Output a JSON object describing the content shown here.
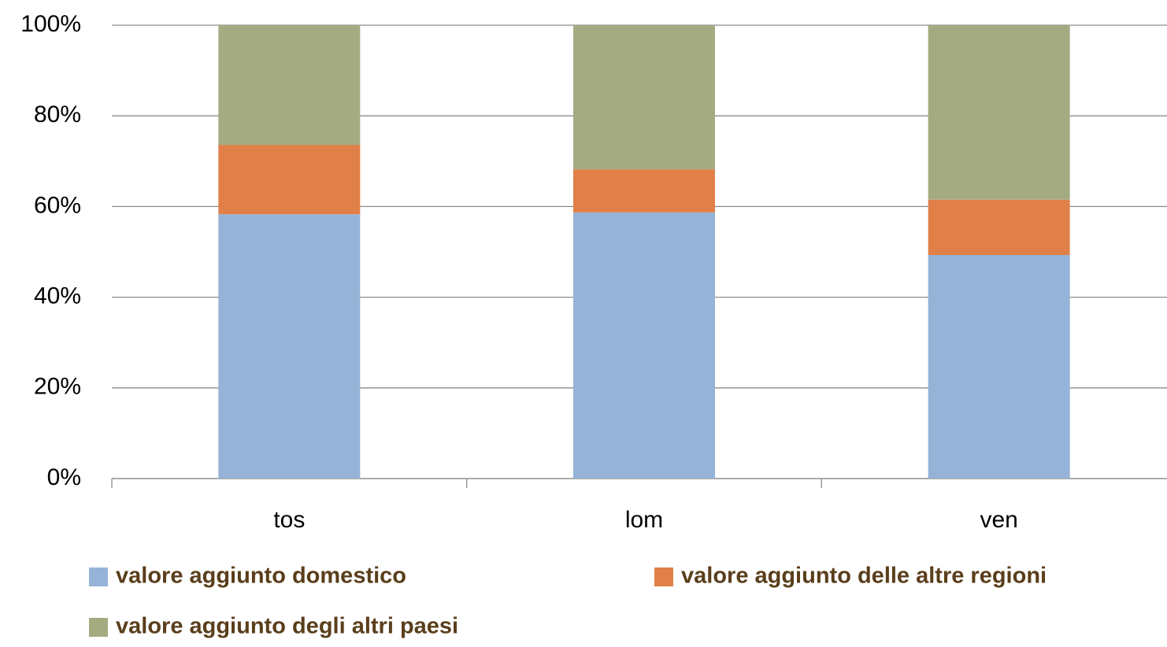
{
  "chart_data": {
    "type": "stacked_bar",
    "categories": [
      "tos",
      "lom",
      "ven"
    ],
    "series": [
      {
        "name": "valore aggiunto domestico",
        "color": "#95b3d7",
        "values": [
          58.3,
          58.7,
          49.3
        ]
      },
      {
        "name": "valore aggiunto delle altre regioni",
        "color": "#e08048",
        "values": [
          15.3,
          9.5,
          12.2
        ]
      },
      {
        "name": "valore aggiunto degli altri paesi",
        "color": "#a5ab81",
        "values": [
          26.4,
          31.8,
          38.5
        ]
      }
    ],
    "ylim": [
      0,
      100
    ],
    "yticks": [
      {
        "value": 0,
        "label": "0%"
      },
      {
        "value": 20,
        "label": "20%"
      },
      {
        "value": 40,
        "label": "40%"
      },
      {
        "value": 60,
        "label": "60%"
      },
      {
        "value": 80,
        "label": "80%"
      },
      {
        "value": 100,
        "label": "100%"
      }
    ],
    "grid": true
  }
}
